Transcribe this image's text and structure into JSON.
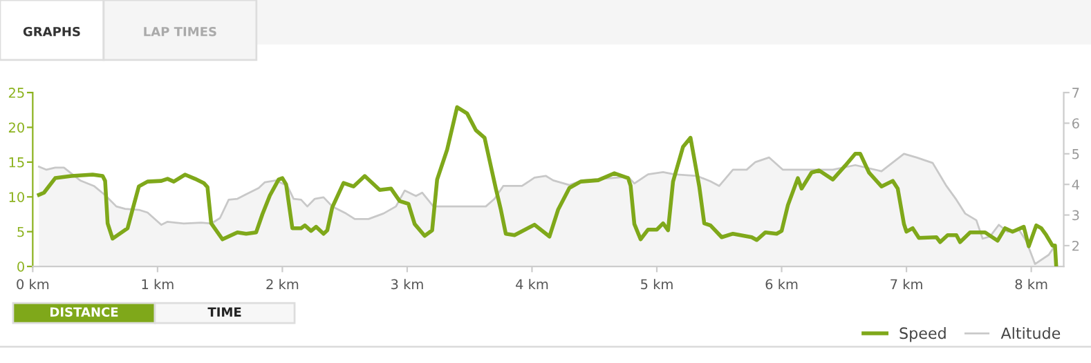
{
  "chart_data": {
    "type": "line",
    "annotations": [
      "GRAPHS",
      "LAP TIMES",
      "DISTANCE",
      "TIME"
    ],
    "xlim": [
      0,
      8.26
    ],
    "xticks": [
      {
        "value": 0,
        "label": "0 km"
      },
      {
        "value": 1,
        "label": "1 km"
      },
      {
        "value": 2,
        "label": "2 km"
      },
      {
        "value": 3,
        "label": "3 km"
      },
      {
        "value": 4,
        "label": "4 km"
      },
      {
        "value": 5,
        "label": "5 km"
      },
      {
        "value": 6,
        "label": "6 km"
      },
      {
        "value": 7,
        "label": "7 km"
      },
      {
        "value": 8,
        "label": "8 km"
      }
    ],
    "ylim": [
      0,
      25
    ],
    "yticks": [
      0,
      5,
      10,
      15,
      20,
      25
    ],
    "y2lim": [
      1.32,
      7
    ],
    "y2ticks": [
      2,
      3,
      4,
      5,
      6,
      7
    ],
    "grid": false,
    "legend": "bottom right",
    "marker": "none",
    "line_style": "solid",
    "series": [
      {
        "name": "Altitude",
        "type": "area",
        "axis": "y2",
        "color": "#c8c8c8",
        "x": [
          0.05,
          0.11,
          0.18,
          0.25,
          0.38,
          0.49,
          0.58,
          0.67,
          0.74,
          0.85,
          0.92,
          1.03,
          1.08,
          1.21,
          1.35,
          1.43,
          1.5,
          1.57,
          1.64,
          1.71,
          1.81,
          1.86,
          1.95,
          2.04,
          2.09,
          2.15,
          2.2,
          2.26,
          2.33,
          2.4,
          2.51,
          2.58,
          2.69,
          2.81,
          2.91,
          2.98,
          3.07,
          3.12,
          3.21,
          3.45,
          3.63,
          3.7,
          3.77,
          3.92,
          4.02,
          4.11,
          4.17,
          4.3,
          4.4,
          4.77,
          4.82,
          4.93,
          5.05,
          5.14,
          5.32,
          5.43,
          5.5,
          5.61,
          5.72,
          5.79,
          5.9,
          6.01,
          6.23,
          6.41,
          6.59,
          6.8,
          6.98,
          7.08,
          7.21,
          7.32,
          7.4,
          7.47,
          7.56,
          7.61,
          7.67,
          7.74,
          7.81,
          7.9,
          7.96,
          8.03,
          8.14,
          8.19
        ],
        "values": [
          4.58,
          4.48,
          4.55,
          4.55,
          4.13,
          3.95,
          3.65,
          3.28,
          3.2,
          3.17,
          3.08,
          2.68,
          2.78,
          2.72,
          2.75,
          2.72,
          2.9,
          3.5,
          3.53,
          3.68,
          3.88,
          4.07,
          4.13,
          3.95,
          3.53,
          3.5,
          3.28,
          3.53,
          3.58,
          3.28,
          3.05,
          2.87,
          2.87,
          3.05,
          3.28,
          3.8,
          3.62,
          3.73,
          3.28,
          3.28,
          3.28,
          3.53,
          3.95,
          3.95,
          4.22,
          4.28,
          4.13,
          3.98,
          4.13,
          4.25,
          4.03,
          4.33,
          4.4,
          4.33,
          4.28,
          4.1,
          3.95,
          4.48,
          4.48,
          4.73,
          4.88,
          4.48,
          4.48,
          4.48,
          4.63,
          4.43,
          5.0,
          4.88,
          4.7,
          3.95,
          3.5,
          3.05,
          2.83,
          2.23,
          2.3,
          2.68,
          2.45,
          2.53,
          2.15,
          1.4,
          1.7,
          2.0
        ]
      },
      {
        "name": "Speed",
        "color": "#7fa81a",
        "x": [
          0.05,
          0.09,
          0.18,
          0.31,
          0.48,
          0.56,
          0.58,
          0.6,
          0.64,
          0.72,
          0.76,
          0.8,
          0.85,
          0.92,
          1.03,
          1.08,
          1.13,
          1.22,
          1.3,
          1.37,
          1.4,
          1.43,
          1.52,
          1.64,
          1.71,
          1.79,
          1.84,
          1.9,
          1.97,
          2.0,
          2.03,
          2.08,
          2.15,
          2.18,
          2.23,
          2.27,
          2.33,
          2.36,
          2.4,
          2.49,
          2.57,
          2.66,
          2.78,
          2.87,
          2.94,
          3.01,
          3.06,
          3.14,
          3.2,
          3.24,
          3.32,
          3.4,
          3.48,
          3.55,
          3.62,
          3.71,
          3.75,
          3.79,
          3.86,
          4.02,
          4.14,
          4.21,
          4.3,
          4.39,
          4.53,
          4.66,
          4.77,
          4.79,
          4.82,
          4.87,
          4.93,
          5.0,
          5.05,
          5.09,
          5.13,
          5.21,
          5.27,
          5.34,
          5.38,
          5.43,
          5.52,
          5.61,
          5.76,
          5.8,
          5.87,
          5.96,
          6.0,
          6.05,
          6.13,
          6.16,
          6.24,
          6.3,
          6.41,
          6.51,
          6.59,
          6.63,
          6.7,
          6.8,
          6.89,
          6.93,
          6.98,
          7.0,
          7.05,
          7.1,
          7.24,
          7.27,
          7.33,
          7.4,
          7.43,
          7.51,
          7.63,
          7.68,
          7.73,
          7.79,
          7.85,
          7.94,
          7.98,
          8.04,
          8.08,
          8.12,
          8.17,
          8.19,
          8.2
        ],
        "values": [
          10.3,
          10.6,
          12.7,
          13.0,
          13.2,
          13.0,
          12.3,
          6.2,
          4.0,
          5.0,
          5.5,
          8.2,
          11.5,
          12.2,
          12.3,
          12.6,
          12.2,
          13.2,
          12.6,
          12.0,
          11.4,
          6.2,
          3.9,
          4.9,
          4.7,
          4.9,
          7.5,
          10.2,
          12.5,
          12.7,
          11.8,
          5.5,
          5.5,
          5.9,
          5.1,
          5.7,
          4.7,
          5.2,
          8.5,
          12.0,
          11.5,
          13.0,
          11.0,
          11.2,
          9.4,
          9.0,
          6.1,
          4.4,
          5.2,
          12.5,
          16.8,
          22.9,
          22.0,
          19.6,
          18.5,
          11.2,
          8.2,
          4.7,
          4.5,
          6.0,
          4.3,
          8.2,
          11.3,
          12.2,
          12.4,
          13.4,
          12.7,
          11.6,
          6.1,
          3.9,
          5.3,
          5.3,
          6.2,
          5.2,
          12.2,
          17.2,
          18.5,
          11.5,
          6.2,
          5.9,
          4.2,
          4.7,
          4.2,
          3.8,
          4.9,
          4.7,
          5.1,
          8.8,
          12.7,
          11.2,
          13.5,
          13.8,
          12.5,
          14.5,
          16.2,
          16.2,
          13.5,
          11.5,
          12.3,
          11.2,
          6.1,
          5.0,
          5.5,
          4.1,
          4.2,
          3.5,
          4.5,
          4.5,
          3.5,
          4.9,
          4.9,
          4.3,
          3.7,
          5.5,
          5.0,
          5.7,
          2.9,
          5.9,
          5.5,
          4.5,
          3.0,
          3.0,
          0
        ]
      }
    ]
  }
}
